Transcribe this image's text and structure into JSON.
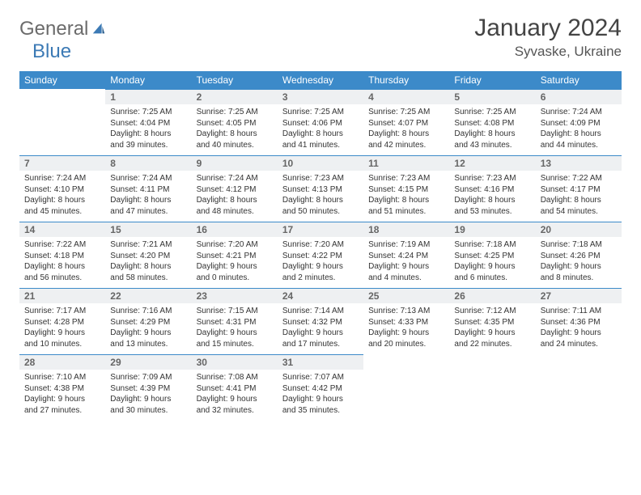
{
  "logo": {
    "word1": "General",
    "word2": "Blue"
  },
  "title": "January 2024",
  "location": "Syvaske, Ukraine",
  "colors": {
    "accent": "#3c8ac9",
    "header_bg": "#eef0f2",
    "text": "#333333"
  },
  "weekdays": [
    "Sunday",
    "Monday",
    "Tuesday",
    "Wednesday",
    "Thursday",
    "Friday",
    "Saturday"
  ],
  "layout": {
    "columns": 7,
    "rows": 5,
    "first_weekday_index": 1,
    "days_in_month": 31
  },
  "days": {
    "1": {
      "sunrise": "7:25 AM",
      "sunset": "4:04 PM",
      "daylight": "8 hours and 39 minutes."
    },
    "2": {
      "sunrise": "7:25 AM",
      "sunset": "4:05 PM",
      "daylight": "8 hours and 40 minutes."
    },
    "3": {
      "sunrise": "7:25 AM",
      "sunset": "4:06 PM",
      "daylight": "8 hours and 41 minutes."
    },
    "4": {
      "sunrise": "7:25 AM",
      "sunset": "4:07 PM",
      "daylight": "8 hours and 42 minutes."
    },
    "5": {
      "sunrise": "7:25 AM",
      "sunset": "4:08 PM",
      "daylight": "8 hours and 43 minutes."
    },
    "6": {
      "sunrise": "7:24 AM",
      "sunset": "4:09 PM",
      "daylight": "8 hours and 44 minutes."
    },
    "7": {
      "sunrise": "7:24 AM",
      "sunset": "4:10 PM",
      "daylight": "8 hours and 45 minutes."
    },
    "8": {
      "sunrise": "7:24 AM",
      "sunset": "4:11 PM",
      "daylight": "8 hours and 47 minutes."
    },
    "9": {
      "sunrise": "7:24 AM",
      "sunset": "4:12 PM",
      "daylight": "8 hours and 48 minutes."
    },
    "10": {
      "sunrise": "7:23 AM",
      "sunset": "4:13 PM",
      "daylight": "8 hours and 50 minutes."
    },
    "11": {
      "sunrise": "7:23 AM",
      "sunset": "4:15 PM",
      "daylight": "8 hours and 51 minutes."
    },
    "12": {
      "sunrise": "7:23 AM",
      "sunset": "4:16 PM",
      "daylight": "8 hours and 53 minutes."
    },
    "13": {
      "sunrise": "7:22 AM",
      "sunset": "4:17 PM",
      "daylight": "8 hours and 54 minutes."
    },
    "14": {
      "sunrise": "7:22 AM",
      "sunset": "4:18 PM",
      "daylight": "8 hours and 56 minutes."
    },
    "15": {
      "sunrise": "7:21 AM",
      "sunset": "4:20 PM",
      "daylight": "8 hours and 58 minutes."
    },
    "16": {
      "sunrise": "7:20 AM",
      "sunset": "4:21 PM",
      "daylight": "9 hours and 0 minutes."
    },
    "17": {
      "sunrise": "7:20 AM",
      "sunset": "4:22 PM",
      "daylight": "9 hours and 2 minutes."
    },
    "18": {
      "sunrise": "7:19 AM",
      "sunset": "4:24 PM",
      "daylight": "9 hours and 4 minutes."
    },
    "19": {
      "sunrise": "7:18 AM",
      "sunset": "4:25 PM",
      "daylight": "9 hours and 6 minutes."
    },
    "20": {
      "sunrise": "7:18 AM",
      "sunset": "4:26 PM",
      "daylight": "9 hours and 8 minutes."
    },
    "21": {
      "sunrise": "7:17 AM",
      "sunset": "4:28 PM",
      "daylight": "9 hours and 10 minutes."
    },
    "22": {
      "sunrise": "7:16 AM",
      "sunset": "4:29 PM",
      "daylight": "9 hours and 13 minutes."
    },
    "23": {
      "sunrise": "7:15 AM",
      "sunset": "4:31 PM",
      "daylight": "9 hours and 15 minutes."
    },
    "24": {
      "sunrise": "7:14 AM",
      "sunset": "4:32 PM",
      "daylight": "9 hours and 17 minutes."
    },
    "25": {
      "sunrise": "7:13 AM",
      "sunset": "4:33 PM",
      "daylight": "9 hours and 20 minutes."
    },
    "26": {
      "sunrise": "7:12 AM",
      "sunset": "4:35 PM",
      "daylight": "9 hours and 22 minutes."
    },
    "27": {
      "sunrise": "7:11 AM",
      "sunset": "4:36 PM",
      "daylight": "9 hours and 24 minutes."
    },
    "28": {
      "sunrise": "7:10 AM",
      "sunset": "4:38 PM",
      "daylight": "9 hours and 27 minutes."
    },
    "29": {
      "sunrise": "7:09 AM",
      "sunset": "4:39 PM",
      "daylight": "9 hours and 30 minutes."
    },
    "30": {
      "sunrise": "7:08 AM",
      "sunset": "4:41 PM",
      "daylight": "9 hours and 32 minutes."
    },
    "31": {
      "sunrise": "7:07 AM",
      "sunset": "4:42 PM",
      "daylight": "9 hours and 35 minutes."
    }
  },
  "labels": {
    "sunrise": "Sunrise:",
    "sunset": "Sunset:",
    "daylight": "Daylight:"
  }
}
